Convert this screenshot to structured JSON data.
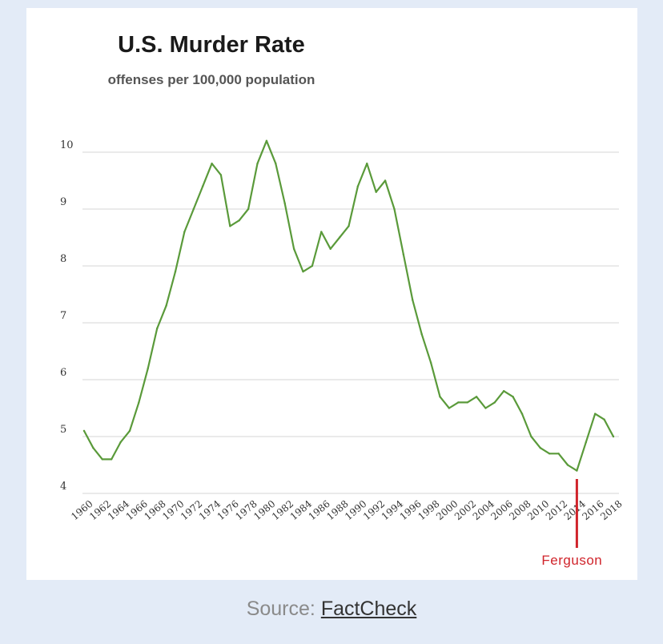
{
  "source": {
    "prefix": "Source: ",
    "link_text": "FactCheck"
  },
  "chart_data": {
    "type": "line",
    "title": "U.S. Murder Rate",
    "subtitle": "offenses per 100,000 population",
    "xlabel": "",
    "ylabel": "",
    "ylim": [
      4,
      10
    ],
    "xlim": [
      1960,
      2018
    ],
    "yticks": [
      "4",
      "5",
      "6",
      "7",
      "8",
      "9",
      "10"
    ],
    "xticks": [
      "1960",
      "1962",
      "1964",
      "1966",
      "1968",
      "1970",
      "1972",
      "1974",
      "1976",
      "1978",
      "1980",
      "1982",
      "1984",
      "1986",
      "1988",
      "1990",
      "1992",
      "1994",
      "1996",
      "1998",
      "2000",
      "2002",
      "2004",
      "2006",
      "2008",
      "2010",
      "2012",
      "2014",
      "2016",
      "2018"
    ],
    "grid": "horizontal",
    "line_color": "#5a9a3a",
    "annotation_color": "#d0242b",
    "series": [
      {
        "x": [
          1960,
          1961,
          1962,
          1963,
          1964,
          1965,
          1966,
          1967,
          1968,
          1969,
          1970,
          1971,
          1972,
          1973,
          1974,
          1975,
          1976,
          1977,
          1978,
          1979,
          1980,
          1981,
          1982,
          1983,
          1984,
          1985,
          1986,
          1987,
          1988,
          1989,
          1990,
          1991,
          1992,
          1993,
          1994,
          1995,
          1996,
          1997,
          1998,
          1999,
          2000,
          2001,
          2002,
          2003,
          2004,
          2005,
          2006,
          2007,
          2008,
          2009,
          2010,
          2011,
          2012,
          2013,
          2014,
          2015,
          2016,
          2017,
          2018
        ],
        "values": [
          5.1,
          4.8,
          4.6,
          4.6,
          4.9,
          5.1,
          5.6,
          6.2,
          6.9,
          7.3,
          7.9,
          8.6,
          9.0,
          9.4,
          9.8,
          9.6,
          8.7,
          8.8,
          9.0,
          9.8,
          10.2,
          9.8,
          9.1,
          8.3,
          7.9,
          8.0,
          8.6,
          8.3,
          8.5,
          8.7,
          9.4,
          9.8,
          9.3,
          9.5,
          9.0,
          8.2,
          7.4,
          6.8,
          6.3,
          5.7,
          5.5,
          5.6,
          5.6,
          5.7,
          5.5,
          5.6,
          5.8,
          5.7,
          5.4,
          5.0,
          4.8,
          4.7,
          4.7,
          4.5,
          4.4,
          4.9,
          5.4,
          5.3,
          5.0
        ]
      }
    ],
    "annotations": [
      {
        "x": 2014,
        "label": "Ferguson"
      }
    ]
  }
}
